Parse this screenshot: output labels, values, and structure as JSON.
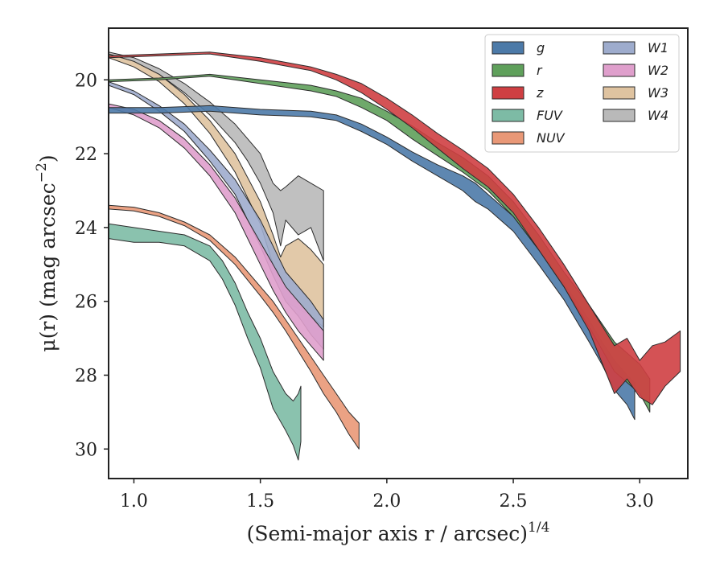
{
  "chart_data": {
    "type": "area",
    "xlabel": "(Semi-major axis r / arcsec)^1/4",
    "ylabel": "μ(r) (mag arcsec^−2)",
    "xlim": [
      0.9,
      3.19
    ],
    "ylim": [
      30.8,
      18.6
    ],
    "y_inverted": true,
    "x_ticks": [
      1.0,
      1.5,
      2.0,
      2.5,
      3.0
    ],
    "x_tick_labels": [
      "1.0",
      "1.5",
      "2.0",
      "2.5",
      "3.0"
    ],
    "y_ticks": [
      20,
      22,
      24,
      26,
      28,
      30
    ],
    "y_tick_labels": [
      "20",
      "22",
      "24",
      "26",
      "28",
      "30"
    ],
    "legend": {
      "placement": "top-right",
      "columns": 2
    },
    "series": [
      {
        "name": "g",
        "color": "#4c7aa8",
        "x": [
          0.9,
          1.1,
          1.3,
          1.5,
          1.7,
          1.8,
          1.9,
          2.0,
          2.1,
          2.2,
          2.3,
          2.35,
          2.4,
          2.5,
          2.6,
          2.7,
          2.8,
          2.85,
          2.9,
          2.95,
          2.98
        ],
        "lower": [
          20.75,
          20.75,
          20.7,
          20.8,
          20.85,
          20.95,
          21.2,
          21.55,
          21.95,
          22.3,
          22.6,
          22.8,
          23.1,
          23.7,
          24.6,
          25.5,
          26.5,
          27.1,
          27.6,
          28.0,
          28.2
        ],
        "upper": [
          20.9,
          20.9,
          20.85,
          20.95,
          21.0,
          21.1,
          21.4,
          21.75,
          22.2,
          22.6,
          23.0,
          23.3,
          23.5,
          24.1,
          25.0,
          25.95,
          27.1,
          27.7,
          28.4,
          28.8,
          29.2
        ]
      },
      {
        "name": "r",
        "color": "#5fa05b",
        "x": [
          0.9,
          1.1,
          1.3,
          1.5,
          1.7,
          1.8,
          1.9,
          2.0,
          2.1,
          2.2,
          2.3,
          2.4,
          2.5,
          2.6,
          2.7,
          2.8,
          2.9,
          3.0,
          3.04
        ],
        "lower": [
          20.0,
          19.95,
          19.85,
          20.0,
          20.15,
          20.3,
          20.5,
          20.85,
          21.25,
          21.7,
          22.1,
          22.6,
          23.3,
          24.2,
          25.2,
          26.1,
          27.1,
          27.7,
          28.1
        ],
        "upper": [
          20.05,
          20.0,
          19.9,
          20.1,
          20.3,
          20.45,
          20.75,
          21.1,
          21.6,
          22.05,
          22.5,
          23.0,
          23.7,
          24.6,
          25.6,
          26.7,
          27.9,
          28.5,
          29.0
        ]
      },
      {
        "name": "z",
        "color": "#cf3f42",
        "x": [
          0.9,
          1.1,
          1.3,
          1.5,
          1.7,
          1.8,
          1.9,
          2.0,
          2.1,
          2.2,
          2.3,
          2.4,
          2.5,
          2.6,
          2.7,
          2.8,
          2.9,
          2.95,
          3.0,
          3.05,
          3.1,
          3.16
        ],
        "lower": [
          19.35,
          19.3,
          19.25,
          19.4,
          19.65,
          19.85,
          20.1,
          20.5,
          20.95,
          21.45,
          21.9,
          22.4,
          23.1,
          24.0,
          25.0,
          26.1,
          27.2,
          27.0,
          27.6,
          27.2,
          27.1,
          26.8
        ],
        "upper": [
          19.4,
          19.35,
          19.3,
          19.5,
          19.75,
          20.0,
          20.35,
          20.8,
          21.3,
          21.85,
          22.4,
          22.9,
          23.6,
          24.6,
          25.6,
          26.8,
          28.5,
          28.1,
          28.6,
          28.8,
          28.3,
          27.9
        ]
      },
      {
        "name": "FUV",
        "color": "#7dbba5",
        "x": [
          0.9,
          1.0,
          1.1,
          1.2,
          1.3,
          1.35,
          1.4,
          1.45,
          1.5,
          1.55,
          1.6,
          1.63,
          1.65,
          1.66
        ],
        "lower": [
          23.9,
          24.0,
          24.1,
          24.2,
          24.5,
          24.9,
          25.5,
          26.3,
          27.0,
          27.9,
          28.5,
          28.7,
          28.5,
          28.3
        ],
        "upper": [
          24.3,
          24.4,
          24.4,
          24.5,
          24.9,
          25.4,
          26.1,
          27.0,
          27.8,
          28.9,
          29.5,
          29.9,
          30.3,
          29.8
        ]
      },
      {
        "name": "NUV",
        "color": "#e99877",
        "x": [
          0.9,
          1.0,
          1.1,
          1.2,
          1.3,
          1.4,
          1.5,
          1.55,
          1.6,
          1.65,
          1.7,
          1.75,
          1.8,
          1.85,
          1.89
        ],
        "lower": [
          23.4,
          23.45,
          23.6,
          23.85,
          24.2,
          24.8,
          25.6,
          26.0,
          26.5,
          27.0,
          27.5,
          28.0,
          28.5,
          29.0,
          29.3
        ],
        "upper": [
          23.5,
          23.55,
          23.7,
          23.95,
          24.35,
          25.0,
          25.85,
          26.3,
          26.8,
          27.35,
          27.9,
          28.5,
          29.0,
          29.6,
          30.0
        ]
      },
      {
        "name": "W1",
        "color": "#9eaccd",
        "x": [
          0.9,
          1.0,
          1.1,
          1.2,
          1.3,
          1.4,
          1.5,
          1.55,
          1.6,
          1.65,
          1.7,
          1.75
        ],
        "lower": [
          20.05,
          20.3,
          20.7,
          21.2,
          21.9,
          22.7,
          23.8,
          24.5,
          25.2,
          25.6,
          26.0,
          26.5
        ],
        "upper": [
          20.15,
          20.4,
          20.85,
          21.4,
          22.2,
          23.1,
          24.5,
          25.3,
          26.0,
          26.4,
          26.9,
          27.3
        ]
      },
      {
        "name": "W2",
        "color": "#df9fcc",
        "x": [
          0.9,
          1.0,
          1.1,
          1.2,
          1.3,
          1.4,
          1.5,
          1.55,
          1.6,
          1.65,
          1.7,
          1.75
        ],
        "lower": [
          20.65,
          20.8,
          21.1,
          21.6,
          22.3,
          23.2,
          24.4,
          25.0,
          25.6,
          26.0,
          26.4,
          26.8
        ],
        "upper": [
          20.75,
          20.95,
          21.3,
          21.85,
          22.6,
          23.6,
          25.0,
          25.7,
          26.3,
          26.8,
          27.2,
          27.6
        ]
      },
      {
        "name": "W3",
        "color": "#dfc3a0",
        "x": [
          0.9,
          1.0,
          1.1,
          1.2,
          1.3,
          1.4,
          1.5,
          1.55,
          1.58,
          1.6,
          1.65,
          1.7,
          1.75
        ],
        "lower": [
          19.3,
          19.5,
          19.85,
          20.4,
          21.1,
          22.0,
          23.3,
          24.2,
          24.8,
          24.5,
          24.3,
          24.6,
          25.0
        ],
        "upper": [
          19.4,
          19.65,
          20.05,
          20.65,
          21.45,
          22.5,
          23.9,
          25.0,
          25.5,
          26.0,
          26.2,
          26.4,
          26.7
        ]
      },
      {
        "name": "W4",
        "color": "#b9b9b9",
        "x": [
          0.9,
          1.0,
          1.1,
          1.2,
          1.3,
          1.4,
          1.45,
          1.5,
          1.55,
          1.58,
          1.6,
          1.65,
          1.7,
          1.75
        ],
        "lower": [
          19.25,
          19.4,
          19.7,
          20.1,
          20.6,
          21.2,
          21.6,
          22.0,
          22.8,
          23.0,
          22.9,
          22.6,
          22.8,
          23.0
        ],
        "upper": [
          19.3,
          19.5,
          19.85,
          20.35,
          20.95,
          21.7,
          22.2,
          22.8,
          23.6,
          24.5,
          23.8,
          24.2,
          24.0,
          24.9
        ]
      }
    ]
  }
}
